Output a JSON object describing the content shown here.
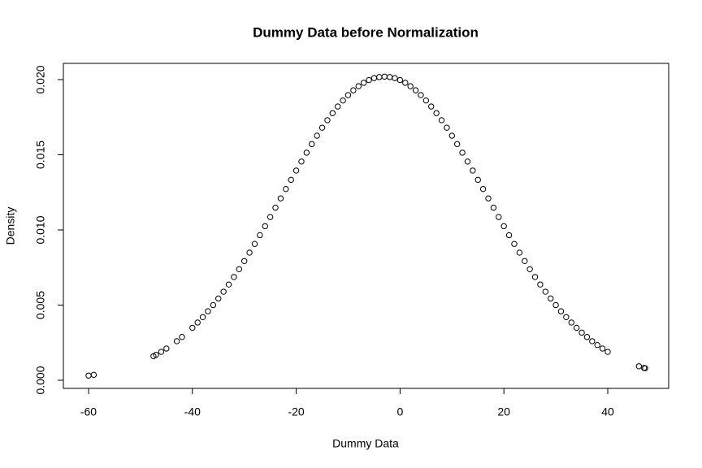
{
  "chart_data": {
    "type": "scatter",
    "title": "Dummy Data before Normalization",
    "x_label": "Dummy Data",
    "y_label": "Density",
    "color": "#000000",
    "x": [
      -60,
      -59,
      -47.5,
      -47,
      -46,
      -45,
      -43,
      -42,
      -40,
      -39,
      -38,
      -37,
      -36,
      -35,
      -34,
      -33,
      -32,
      -31,
      -30,
      -29,
      -28,
      -27,
      -26,
      -25,
      -24,
      -23,
      -22,
      -21,
      -20,
      -19,
      -18,
      -17,
      -16,
      -15,
      -14,
      -13,
      -12,
      -11,
      -10,
      -9,
      -8,
      -7,
      -6,
      -5,
      -4,
      -3,
      -2,
      -1,
      0,
      1,
      2,
      3,
      4,
      5,
      6,
      7,
      8,
      9,
      10,
      11,
      12,
      13,
      14,
      15,
      16,
      17,
      18,
      19,
      20,
      21,
      22,
      23,
      24,
      25,
      26,
      27,
      28,
      29,
      30,
      31,
      32,
      33,
      34,
      35,
      36,
      37,
      38,
      39,
      40,
      46,
      47,
      47.2
    ],
    "values": [
      0.00031,
      0.00036,
      0.0016,
      0.00169,
      0.00189,
      0.00211,
      0.0026,
      0.00288,
      0.00349,
      0.00384,
      0.0042,
      0.00459,
      0.005,
      0.00544,
      0.00589,
      0.00637,
      0.00687,
      0.00739,
      0.00793,
      0.00849,
      0.00907,
      0.00965,
      0.01025,
      0.01086,
      0.01148,
      0.0121,
      0.01272,
      0.01333,
      0.01395,
      0.01455,
      0.01514,
      0.01571,
      0.01627,
      0.0168,
      0.0173,
      0.01777,
      0.01821,
      0.01861,
      0.01897,
      0.01929,
      0.01956,
      0.01979,
      0.01997,
      0.0201,
      0.02017,
      0.0202,
      0.02017,
      0.0201,
      0.01997,
      0.01979,
      0.01956,
      0.01929,
      0.01897,
      0.01861,
      0.01821,
      0.01777,
      0.0173,
      0.0168,
      0.01627,
      0.01571,
      0.01514,
      0.01455,
      0.01395,
      0.01333,
      0.01272,
      0.0121,
      0.01148,
      0.01086,
      0.01025,
      0.00965,
      0.00907,
      0.00849,
      0.00793,
      0.00739,
      0.00687,
      0.00637,
      0.00589,
      0.00544,
      0.005,
      0.00459,
      0.0042,
      0.00384,
      0.00349,
      0.00317,
      0.00288,
      0.0026,
      0.00234,
      0.00211,
      0.00189,
      0.00093,
      0.00082,
      0.0008
    ],
    "xlim": [
      -64.85,
      51.74
    ],
    "ylim": [
      -0.00054,
      0.02108
    ],
    "xticks": [
      -60,
      -40,
      -20,
      0,
      20,
      40
    ],
    "yticks": [
      {
        "value": 0,
        "label": "0.000"
      },
      {
        "value": 0.005,
        "label": "0.005"
      },
      {
        "value": 0.01,
        "label": "0.010"
      },
      {
        "value": 0.015,
        "label": "0.015"
      },
      {
        "value": 0.02,
        "label": "0.020"
      }
    ]
  }
}
